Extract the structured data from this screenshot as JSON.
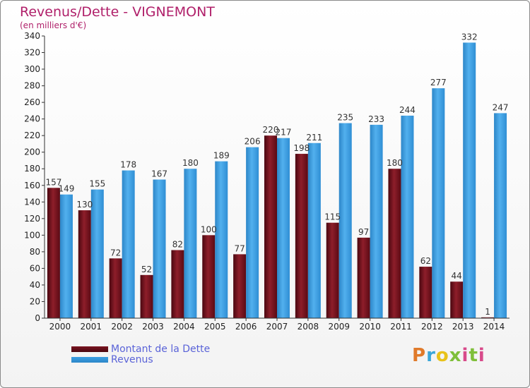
{
  "header": {
    "title": "Revenus/Dette - VIGNEMONT",
    "subtitle": "(en milliers d'€)"
  },
  "colors": {
    "dette": "#7a1420",
    "revenus": "#3c9ee3"
  },
  "legend": {
    "dette_label": "Montant de la Dette",
    "revenus_label": "Revenus"
  },
  "logo": {
    "text": "Proxiti"
  },
  "chart_data": {
    "type": "bar",
    "categories": [
      "2000",
      "2001",
      "2002",
      "2003",
      "2004",
      "2005",
      "2006",
      "2007",
      "2008",
      "2009",
      "2010",
      "2011",
      "2012",
      "2013",
      "2014"
    ],
    "series": [
      {
        "name": "Montant de la Dette",
        "values": [
          157,
          130,
          72,
          52,
          82,
          100,
          77,
          220,
          198,
          115,
          97,
          180,
          62,
          44,
          1
        ]
      },
      {
        "name": "Revenus",
        "values": [
          149,
          155,
          178,
          167,
          180,
          189,
          206,
          217,
          211,
          235,
          233,
          244,
          277,
          332,
          247
        ]
      }
    ],
    "ylim": [
      0,
      340
    ],
    "ytick_step": 20,
    "grid": false,
    "legend_position": "bottom-left"
  }
}
